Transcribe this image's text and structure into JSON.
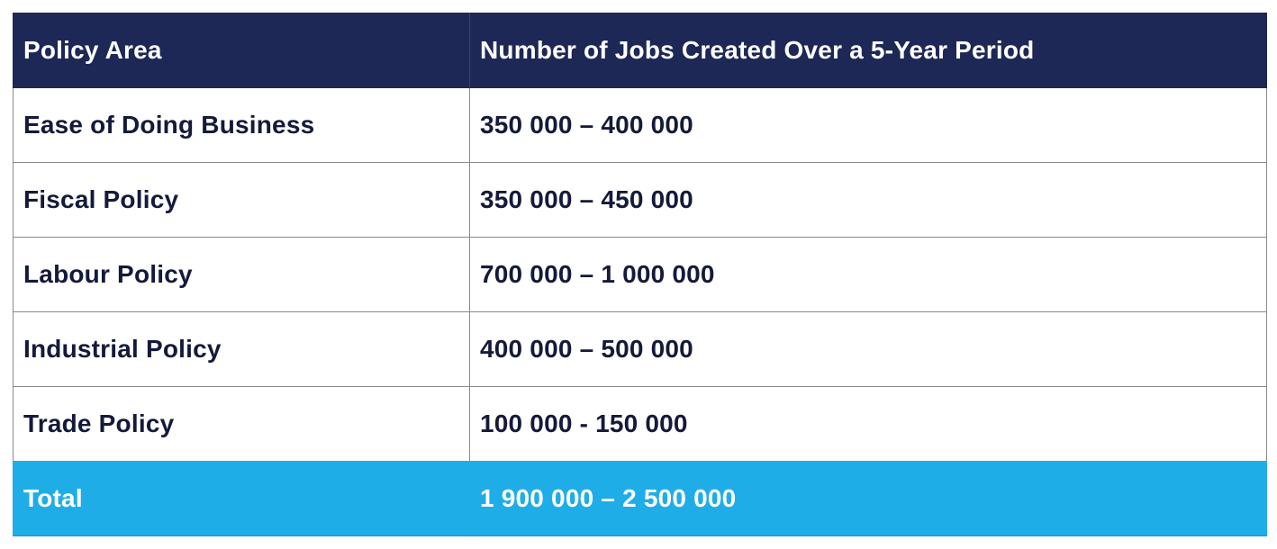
{
  "table": {
    "headers": {
      "policy_area": "Policy Area",
      "jobs": "Number of Jobs Created Over a 5-Year Period"
    },
    "rows": [
      {
        "policy_area": "Ease of Doing Business",
        "jobs": "350 000 – 400 000"
      },
      {
        "policy_area": "Fiscal Policy",
        "jobs": "350 000 – 450 000"
      },
      {
        "policy_area": "Labour Policy",
        "jobs": "700 000 – 1 000 000"
      },
      {
        "policy_area": "Industrial Policy",
        "jobs": "400 000 – 500 000"
      },
      {
        "policy_area": "Trade Policy",
        "jobs": "100 000 - 150 000"
      }
    ],
    "total": {
      "label": "Total",
      "jobs": "1 900 000 – 2 500 000"
    }
  },
  "colors": {
    "header_background": "#1e2856",
    "header_text": "#ffffff",
    "body_text": "#141a3a",
    "total_background": "#1fade8",
    "total_text": "#ffffff",
    "grid_line": "#8a8a8a"
  }
}
